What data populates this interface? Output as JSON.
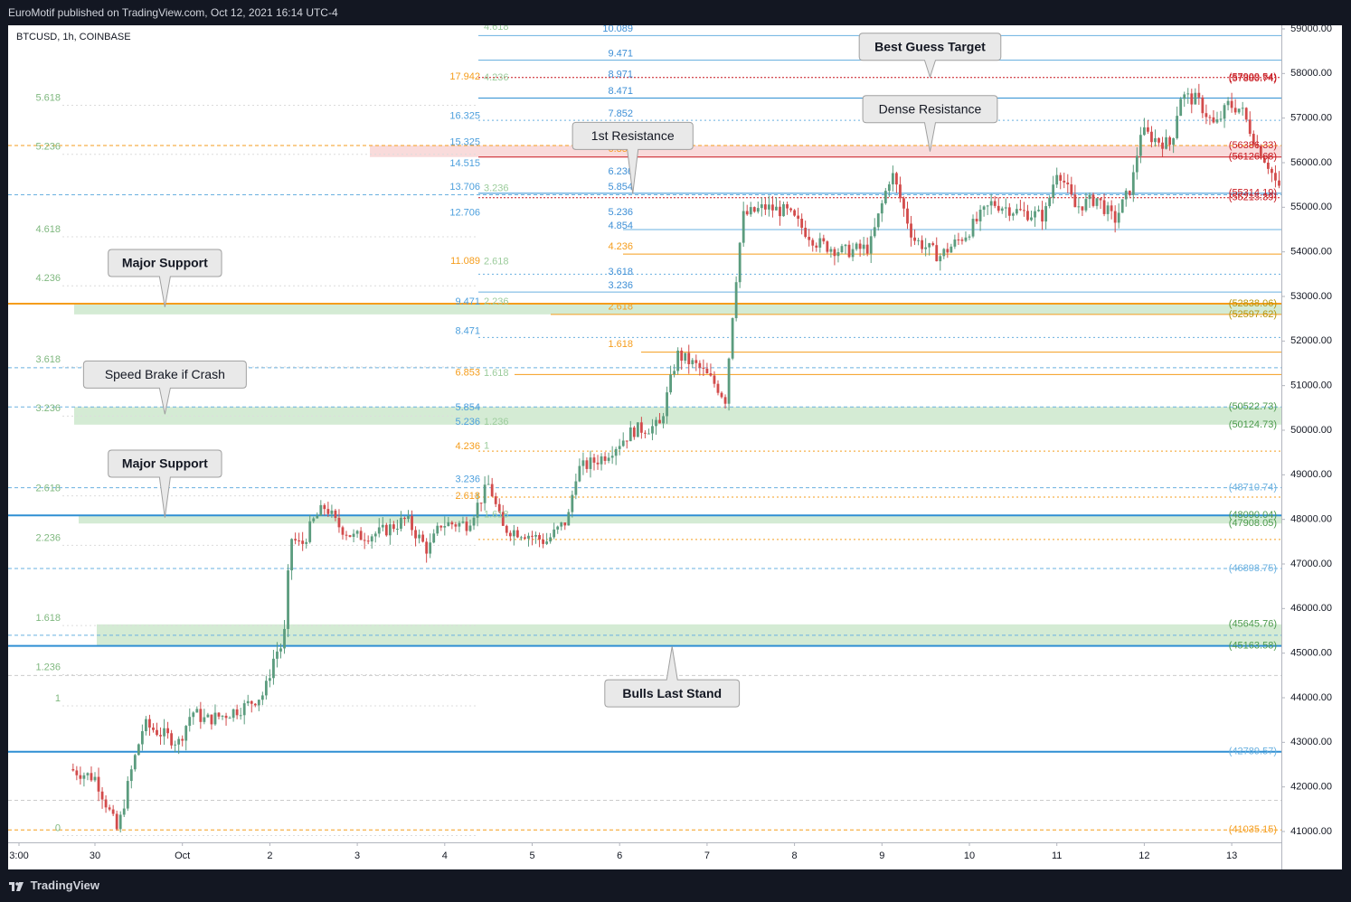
{
  "header": {
    "publish_text": "EuroMotif published on TradingView.com, Oct 12, 2021 16:14 UTC-4"
  },
  "symbol_label": "BTCUSD, 1h, COINBASE",
  "footer": {
    "brand": "TradingView"
  },
  "colors": {
    "up": "#5b9c7e",
    "down": "#d24b4b",
    "blue": "#2f8fd3",
    "orange": "#f59d1c",
    "green_zone": "#cde8cd",
    "red_zone": "#f8d5d5",
    "red_label": "#c8161d",
    "green_label": "#4c9a4c"
  },
  "chart_data": {
    "type": "candlestick",
    "symbol": "BTCUSD",
    "interval": "1h",
    "exchange": "COINBASE",
    "ylim": [
      40800,
      59300
    ],
    "y_ticks": [
      "59000.00",
      "58000.00",
      "57000.00",
      "56000.00",
      "55000.00",
      "54000.00",
      "53000.00",
      "52000.00",
      "51000.00",
      "50000.00",
      "49000.00",
      "48000.00",
      "47000.00",
      "46000.00",
      "45000.00",
      "44000.00",
      "43000.00",
      "42000.00",
      "41000.00"
    ],
    "x_ticks": [
      "3:00",
      "30",
      "Oct",
      "2",
      "3",
      "4",
      "5",
      "6",
      "7",
      "8",
      "9",
      "10",
      "11",
      "12",
      "13"
    ],
    "price_path": [
      {
        "day": -0.25,
        "price": 42400
      },
      {
        "day": 0.05,
        "price": 42200
      },
      {
        "day": 0.3,
        "price": 41000
      },
      {
        "day": 0.45,
        "price": 42300
      },
      {
        "day": 0.6,
        "price": 43400
      },
      {
        "day": 0.9,
        "price": 43100
      },
      {
        "day": 1.0,
        "price": 43000
      },
      {
        "day": 1.15,
        "price": 43700
      },
      {
        "day": 1.3,
        "price": 43500
      },
      {
        "day": 1.5,
        "price": 43600
      },
      {
        "day": 1.75,
        "price": 43800
      },
      {
        "day": 1.98,
        "price": 44100
      },
      {
        "day": 2.1,
        "price": 45000
      },
      {
        "day": 2.2,
        "price": 45200
      },
      {
        "day": 2.28,
        "price": 47600
      },
      {
        "day": 2.4,
        "price": 47400
      },
      {
        "day": 2.55,
        "price": 48000
      },
      {
        "day": 2.68,
        "price": 48300
      },
      {
        "day": 2.8,
        "price": 47900
      },
      {
        "day": 3.0,
        "price": 47600
      },
      {
        "day": 3.3,
        "price": 47700
      },
      {
        "day": 3.6,
        "price": 48000
      },
      {
        "day": 3.85,
        "price": 47300
      },
      {
        "day": 4.0,
        "price": 47900
      },
      {
        "day": 4.3,
        "price": 47900
      },
      {
        "day": 4.55,
        "price": 48800
      },
      {
        "day": 4.7,
        "price": 47800
      },
      {
        "day": 4.95,
        "price": 47700
      },
      {
        "day": 5.2,
        "price": 47500
      },
      {
        "day": 5.45,
        "price": 48000
      },
      {
        "day": 5.55,
        "price": 49100
      },
      {
        "day": 5.85,
        "price": 49400
      },
      {
        "day": 6.2,
        "price": 50000
      },
      {
        "day": 6.5,
        "price": 50100
      },
      {
        "day": 6.7,
        "price": 51700
      },
      {
        "day": 6.95,
        "price": 51400
      },
      {
        "day": 7.15,
        "price": 51000
      },
      {
        "day": 7.25,
        "price": 50700
      },
      {
        "day": 7.35,
        "price": 53000
      },
      {
        "day": 7.45,
        "price": 54800
      },
      {
        "day": 7.7,
        "price": 55000
      },
      {
        "day": 7.95,
        "price": 54900
      },
      {
        "day": 8.3,
        "price": 54200
      },
      {
        "day": 8.6,
        "price": 54000
      },
      {
        "day": 8.9,
        "price": 54100
      },
      {
        "day": 9.15,
        "price": 55800
      },
      {
        "day": 9.4,
        "price": 54300
      },
      {
        "day": 9.7,
        "price": 53900
      },
      {
        "day": 10.0,
        "price": 54400
      },
      {
        "day": 10.3,
        "price": 55100
      },
      {
        "day": 10.6,
        "price": 54900
      },
      {
        "day": 10.9,
        "price": 54800
      },
      {
        "day": 11.05,
        "price": 55900
      },
      {
        "day": 11.25,
        "price": 55000
      },
      {
        "day": 11.5,
        "price": 55200
      },
      {
        "day": 11.7,
        "price": 54700
      },
      {
        "day": 11.9,
        "price": 55500
      },
      {
        "day": 12.0,
        "price": 56700
      },
      {
        "day": 12.2,
        "price": 56500
      },
      {
        "day": 12.35,
        "price": 56400
      },
      {
        "day": 12.45,
        "price": 57500
      },
      {
        "day": 12.65,
        "price": 57400
      },
      {
        "day": 12.85,
        "price": 56800
      },
      {
        "day": 13.0,
        "price": 57300
      },
      {
        "day": 13.15,
        "price": 57200
      },
      {
        "day": 13.35,
        "price": 56300
      },
      {
        "day": 13.45,
        "price": 56000
      },
      {
        "day": 13.6,
        "price": 55300
      },
      {
        "day": 13.67,
        "price": 54900
      }
    ],
    "right_labels": [
      {
        "text": "(57909.54)",
        "price": 57909.54,
        "color": "#c8161d"
      },
      {
        "text": "(57880.74)",
        "price": 57880.74,
        "color": "#c8161d"
      },
      {
        "text": "(56386.33)",
        "price": 56386.33,
        "color": "#c8161d"
      },
      {
        "text": "(56126.68)",
        "price": 56126.68,
        "color": "#c8161d"
      },
      {
        "text": "(55314.19)",
        "price": 55314.19,
        "color": "#c8161d"
      },
      {
        "text": "(55215.39)",
        "price": 55215.39,
        "color": "#c8161d"
      },
      {
        "text": "(52838.06)",
        "price": 52838.06,
        "color": "#b7950b"
      },
      {
        "text": "(52597.62)",
        "price": 52597.62,
        "color": "#b7950b"
      },
      {
        "text": "(50522.73)",
        "price": 50522.73,
        "color": "#4c9a4c"
      },
      {
        "text": "(50124.73)",
        "price": 50124.73,
        "color": "#4c9a4c"
      },
      {
        "text": "(48710.74)",
        "price": 48710.74,
        "color": "#6ab1e0"
      },
      {
        "text": "(48090.04)",
        "price": 48090.04,
        "color": "#4c9a4c"
      },
      {
        "text": "(47908.05)",
        "price": 47908.05,
        "color": "#4c9a4c"
      },
      {
        "text": "(46898.75)",
        "price": 46898.75,
        "color": "#6ab1e0"
      },
      {
        "text": "(45645.76)",
        "price": 45645.76,
        "color": "#4c9a4c"
      },
      {
        "text": "(45163.58)",
        "price": 45163.58,
        "color": "#4c9a4c"
      },
      {
        "text": "(42789.57)",
        "price": 42789.57,
        "color": "#6ab1e0"
      },
      {
        "text": "(41035.15)",
        "price": 41035.15,
        "color": "#f59d1c"
      }
    ],
    "fib_left": [
      {
        "text": "5.618",
        "price": 57450
      },
      {
        "text": "5.236",
        "price": 56350
      },
      {
        "text": "4.618",
        "price": 54500
      },
      {
        "text": "4.236",
        "price": 53400
      },
      {
        "text": "3.618",
        "price": 51580
      },
      {
        "text": "3.236",
        "price": 50480
      },
      {
        "text": "2.618",
        "price": 48690
      },
      {
        "text": "2.236",
        "price": 47580
      },
      {
        "text": "1.618",
        "price": 45780
      },
      {
        "text": "1.236",
        "price": 44680
      },
      {
        "text": "1",
        "price": 43980
      },
      {
        "text": "0",
        "price": 41070
      }
    ],
    "fib_mid_blue": [
      {
        "text": "16.325",
        "price": 57040
      },
      {
        "text": "15.325",
        "price": 56450
      },
      {
        "text": "14.515",
        "price": 55980
      },
      {
        "text": "13.706",
        "price": 55450
      },
      {
        "text": "12.706",
        "price": 54870
      },
      {
        "text": "9.471",
        "price": 52880
      },
      {
        "text": "8.471",
        "price": 52220
      },
      {
        "text": "5.854",
        "price": 50500
      },
      {
        "text": "5.236",
        "price": 50180
      },
      {
        "text": "3.236",
        "price": 48890
      }
    ],
    "fib_mid_orange": [
      {
        "text": "17.942",
        "price": 57920
      },
      {
        "text": "11.089",
        "price": 53790
      },
      {
        "text": "6.853",
        "price": 51290
      },
      {
        "text": "4.236",
        "price": 49630
      },
      {
        "text": "2.618",
        "price": 48520
      }
    ],
    "fib_mid_green": [
      {
        "text": "4.618",
        "price": 59040
      },
      {
        "text": "4.236",
        "price": 57900
      },
      {
        "text": "3.236",
        "price": 55420
      },
      {
        "text": "2.618",
        "price": 53780
      },
      {
        "text": "2.236",
        "price": 52880
      },
      {
        "text": "1.618",
        "price": 51280
      },
      {
        "text": "1.236",
        "price": 50180
      },
      {
        "text": "1",
        "price": 49640
      },
      {
        "text": "1.618",
        "price": 48100
      }
    ],
    "fib_right_blue": [
      {
        "text": "10.089",
        "price": 59000
      },
      {
        "text": "9.471",
        "price": 58440
      },
      {
        "text": "8.971",
        "price": 57970
      },
      {
        "text": "8.471",
        "price": 57600
      },
      {
        "text": "7.852",
        "price": 57090
      },
      {
        "text": "6.236",
        "price": 55800
      },
      {
        "text": "5.854",
        "price": 55450
      },
      {
        "text": "5.236",
        "price": 54880
      },
      {
        "text": "4.854",
        "price": 54580
      },
      {
        "text": "3.618",
        "price": 53550
      },
      {
        "text": "3.236",
        "price": 53240
      }
    ],
    "fib_right_orange": [
      {
        "text": "6.853",
        "price": 56300
      },
      {
        "text": "4.236",
        "price": 54110
      },
      {
        "text": "2.618",
        "price": 52770
      },
      {
        "text": "1.618",
        "price": 51920
      }
    ],
    "callouts": [
      {
        "text": "Best Guess Target",
        "bold": true,
        "day": 9.55,
        "price": 58600,
        "tip_price": 57920,
        "direction": "down"
      },
      {
        "text": "Dense Resistance",
        "bold": false,
        "day": 9.55,
        "price": 57200,
        "tip_price": 56250,
        "direction": "down"
      },
      {
        "text": "1st Resistance",
        "bold": false,
        "day": 6.15,
        "price": 56600,
        "tip_price": 55300,
        "direction": "down"
      },
      {
        "text": "Major Support",
        "bold": true,
        "day": 0.8,
        "price": 53750,
        "tip_price": 52760,
        "direction": "down"
      },
      {
        "text": "Speed Brake if Crash",
        "bold": false,
        "day": 0.8,
        "price": 51250,
        "tip_price": 50360,
        "direction": "down"
      },
      {
        "text": "Major Support",
        "bold": true,
        "day": 0.8,
        "price": 49250,
        "tip_price": 48040,
        "direction": "down"
      },
      {
        "text": "Bulls Last Stand",
        "bold": true,
        "day": 6.6,
        "price": 44100,
        "tip_price": 45150,
        "direction": "up"
      }
    ]
  }
}
